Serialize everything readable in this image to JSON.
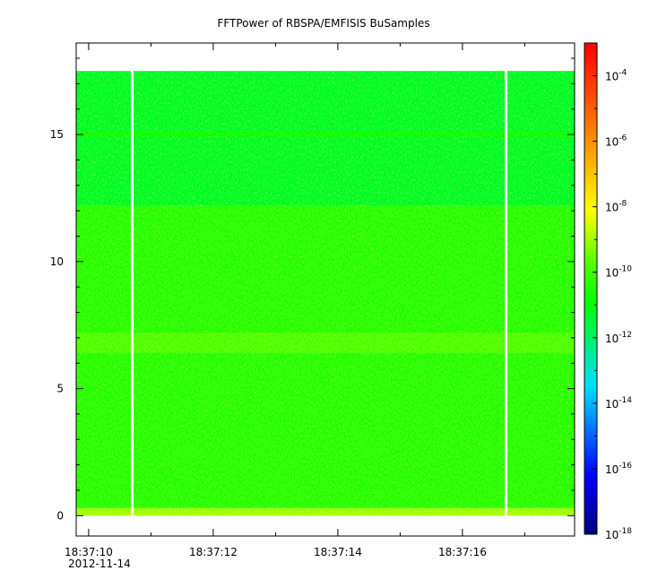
{
  "chart_data": {
    "type": "heatmap",
    "title": "FFTPower of RBSPA/EMFISIS  BuSamples",
    "xlabel": "",
    "ylabel": "",
    "x_tick_labels": [
      "18:37:10",
      "18:37:12",
      "18:37:14",
      "18:37:16"
    ],
    "x_date_label": "2012-11-14",
    "x_range": [
      "18:37:09.8",
      "18:37:17.8"
    ],
    "y_ticks": [
      0,
      5,
      10,
      15
    ],
    "y_tick_labels": [
      "0",
      "5",
      "10",
      "15"
    ],
    "ylim": [
      -0.8,
      18.6
    ],
    "data_y_range": [
      0,
      17.5
    ],
    "data_gaps": [
      "18:37:10.7",
      "18:37:16.7"
    ],
    "colorbar": {
      "scale": "log",
      "range": [
        1e-18,
        0.001
      ],
      "tick_base": "10",
      "tick_exponents": [
        "-4",
        "-6",
        "-8",
        "-10",
        "-12",
        "-14",
        "-16",
        "-18"
      ],
      "tick_values": [
        -4,
        -6,
        -8,
        -10,
        -12,
        -14,
        -16,
        -18
      ]
    },
    "power_bands": [
      {
        "y_range": [
          0,
          0.3
        ],
        "log_power": -9
      },
      {
        "y_range": [
          0.3,
          12.2
        ],
        "log_power": -10.4
      },
      {
        "y_range": [
          6.4,
          7.2
        ],
        "log_power": -9.8
      },
      {
        "y_range": [
          12.2,
          17.5
        ],
        "log_power": -11.3
      },
      {
        "y_range": [
          14.9,
          15.1
        ],
        "log_power": -10.8
      }
    ]
  }
}
